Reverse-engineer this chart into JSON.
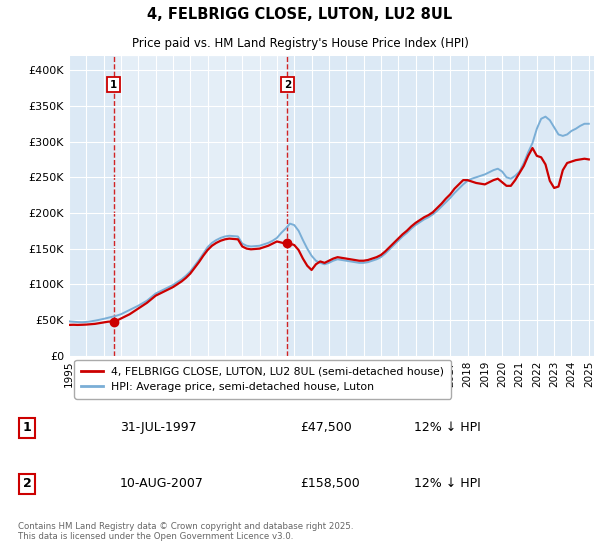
{
  "title": "4, FELBRIGG CLOSE, LUTON, LU2 8UL",
  "subtitle": "Price paid vs. HM Land Registry's House Price Index (HPI)",
  "legend_label_red": "4, FELBRIGG CLOSE, LUTON, LU2 8UL (semi-detached house)",
  "legend_label_blue": "HPI: Average price, semi-detached house, Luton",
  "purchase1_date": "31-JUL-1997",
  "purchase1_price": 47500,
  "purchase1_label": "1",
  "purchase1_note": "12% ↓ HPI",
  "purchase2_date": "10-AUG-2007",
  "purchase2_price": 158500,
  "purchase2_label": "2",
  "purchase2_note": "12% ↓ HPI",
  "copyright": "Contains HM Land Registry data © Crown copyright and database right 2025.\nThis data is licensed under the Open Government Licence v3.0.",
  "plot_bg_color": "#dce9f5",
  "grid_color": "#ffffff",
  "red_line_color": "#cc0000",
  "blue_line_color": "#7aaed6",
  "ylim": [
    0,
    420000
  ],
  "yticks": [
    0,
    50000,
    100000,
    150000,
    200000,
    250000,
    300000,
    350000,
    400000
  ],
  "ytick_labels": [
    "£0",
    "£50K",
    "£100K",
    "£150K",
    "£200K",
    "£250K",
    "£300K",
    "£350K",
    "£400K"
  ],
  "hpi_dates": [
    1995.0,
    1995.25,
    1995.5,
    1995.75,
    1996.0,
    1996.25,
    1996.5,
    1996.75,
    1997.0,
    1997.25,
    1997.5,
    1997.75,
    1998.0,
    1998.25,
    1998.5,
    1998.75,
    1999.0,
    1999.25,
    1999.5,
    1999.75,
    2000.0,
    2000.25,
    2000.5,
    2000.75,
    2001.0,
    2001.25,
    2001.5,
    2001.75,
    2002.0,
    2002.25,
    2002.5,
    2002.75,
    2003.0,
    2003.25,
    2003.5,
    2003.75,
    2004.0,
    2004.25,
    2004.5,
    2004.75,
    2005.0,
    2005.25,
    2005.5,
    2005.75,
    2006.0,
    2006.25,
    2006.5,
    2006.75,
    2007.0,
    2007.25,
    2007.5,
    2007.75,
    2008.0,
    2008.25,
    2008.5,
    2008.75,
    2009.0,
    2009.25,
    2009.5,
    2009.75,
    2010.0,
    2010.25,
    2010.5,
    2010.75,
    2011.0,
    2011.25,
    2011.5,
    2011.75,
    2012.0,
    2012.25,
    2012.5,
    2012.75,
    2013.0,
    2013.25,
    2013.5,
    2013.75,
    2014.0,
    2014.25,
    2014.5,
    2014.75,
    2015.0,
    2015.25,
    2015.5,
    2015.75,
    2016.0,
    2016.25,
    2016.5,
    2016.75,
    2017.0,
    2017.25,
    2017.5,
    2017.75,
    2018.0,
    2018.25,
    2018.5,
    2018.75,
    2019.0,
    2019.25,
    2019.5,
    2019.75,
    2020.0,
    2020.25,
    2020.5,
    2020.75,
    2021.0,
    2021.25,
    2021.5,
    2021.75,
    2022.0,
    2022.25,
    2022.5,
    2022.75,
    2023.0,
    2023.25,
    2023.5,
    2023.75,
    2024.0,
    2024.25,
    2024.5,
    2024.75,
    2025.0
  ],
  "hpi_values": [
    48000,
    47500,
    47000,
    46800,
    47200,
    48000,
    49000,
    50200,
    51500,
    53000,
    54500,
    56000,
    58000,
    61000,
    64000,
    67000,
    70000,
    73500,
    77000,
    82000,
    87000,
    90000,
    93000,
    96000,
    99000,
    103000,
    107000,
    112000,
    118000,
    126000,
    134000,
    143000,
    152000,
    158000,
    162000,
    165000,
    167000,
    168000,
    167500,
    167000,
    157000,
    154000,
    153000,
    153500,
    154000,
    156000,
    158000,
    161000,
    165000,
    172000,
    178000,
    185000,
    183000,
    175000,
    162000,
    150000,
    140000,
    133000,
    130000,
    128000,
    130000,
    133000,
    135000,
    134000,
    133000,
    132000,
    131000,
    130000,
    130000,
    131000,
    133000,
    135000,
    138000,
    143000,
    149000,
    155000,
    161000,
    167000,
    172000,
    178000,
    183000,
    187000,
    191000,
    194000,
    198000,
    203000,
    209000,
    215000,
    221000,
    228000,
    234000,
    240000,
    245000,
    248000,
    250000,
    252000,
    254000,
    257000,
    260000,
    262000,
    258000,
    250000,
    248000,
    252000,
    258000,
    270000,
    285000,
    298000,
    318000,
    332000,
    335000,
    330000,
    320000,
    310000,
    308000,
    310000,
    315000,
    318000,
    322000,
    325000,
    325000
  ],
  "red_dates": [
    1995.0,
    1995.25,
    1995.5,
    1995.75,
    1996.0,
    1996.25,
    1996.5,
    1996.75,
    1997.0,
    1997.25,
    1997.5,
    1997.75,
    1998.0,
    1998.25,
    1998.5,
    1998.75,
    1999.0,
    1999.25,
    1999.5,
    1999.75,
    2000.0,
    2000.25,
    2000.5,
    2000.75,
    2001.0,
    2001.25,
    2001.5,
    2001.75,
    2002.0,
    2002.25,
    2002.5,
    2002.75,
    2003.0,
    2003.25,
    2003.5,
    2003.75,
    2004.0,
    2004.25,
    2004.5,
    2004.75,
    2005.0,
    2005.25,
    2005.5,
    2005.75,
    2006.0,
    2006.25,
    2006.5,
    2006.75,
    2007.0,
    2007.25,
    2007.5,
    2007.75,
    2008.0,
    2008.25,
    2008.5,
    2008.75,
    2009.0,
    2009.25,
    2009.5,
    2009.75,
    2010.0,
    2010.25,
    2010.5,
    2010.75,
    2011.0,
    2011.25,
    2011.5,
    2011.75,
    2012.0,
    2012.25,
    2012.5,
    2012.75,
    2013.0,
    2013.25,
    2013.5,
    2013.75,
    2014.0,
    2014.25,
    2014.5,
    2014.75,
    2015.0,
    2015.25,
    2015.5,
    2015.75,
    2016.0,
    2016.25,
    2016.5,
    2016.75,
    2017.0,
    2017.25,
    2017.5,
    2017.75,
    2018.0,
    2018.25,
    2018.5,
    2018.75,
    2019.0,
    2019.25,
    2019.5,
    2019.75,
    2020.0,
    2020.25,
    2020.5,
    2020.75,
    2021.0,
    2021.25,
    2021.5,
    2021.75,
    2022.0,
    2022.25,
    2022.5,
    2022.75,
    2023.0,
    2023.25,
    2023.5,
    2023.75,
    2024.0,
    2024.25,
    2024.5,
    2024.75,
    2025.0
  ],
  "red_values": [
    43000,
    43200,
    43000,
    43200,
    43500,
    44000,
    44500,
    45500,
    46500,
    47500,
    48000,
    49000,
    52000,
    55000,
    58000,
    62000,
    66000,
    70000,
    74000,
    79000,
    84000,
    87000,
    90000,
    93000,
    96000,
    100000,
    104000,
    109000,
    115000,
    123000,
    131000,
    140000,
    148000,
    154000,
    158000,
    161000,
    163000,
    164000,
    163500,
    163000,
    153000,
    150000,
    149000,
    149500,
    150000,
    152000,
    154000,
    157000,
    160000,
    158500,
    157000,
    157000,
    155000,
    148000,
    136000,
    126000,
    120000,
    128000,
    132000,
    130000,
    133000,
    136000,
    138000,
    137000,
    136000,
    135000,
    134000,
    133000,
    133000,
    134000,
    136000,
    138000,
    141000,
    146000,
    152000,
    158000,
    164000,
    170000,
    175000,
    181000,
    186000,
    190000,
    194000,
    197000,
    201000,
    207000,
    213000,
    220000,
    226000,
    234000,
    240000,
    246000,
    246000,
    244000,
    242000,
    241000,
    240000,
    243000,
    246000,
    248000,
    243000,
    238000,
    238000,
    246000,
    256000,
    266000,
    280000,
    291000,
    280000,
    278000,
    268000,
    245000,
    235000,
    237000,
    260000,
    270000,
    272000,
    274000,
    275000,
    276000,
    275000
  ],
  "purchase1_x": 1997.58,
  "purchase2_x": 2007.6,
  "xtick_years": [
    1995,
    1996,
    1997,
    1998,
    1999,
    2000,
    2001,
    2002,
    2003,
    2004,
    2005,
    2006,
    2007,
    2008,
    2009,
    2010,
    2011,
    2012,
    2013,
    2014,
    2015,
    2016,
    2017,
    2018,
    2019,
    2020,
    2021,
    2022,
    2023,
    2024,
    2025
  ]
}
